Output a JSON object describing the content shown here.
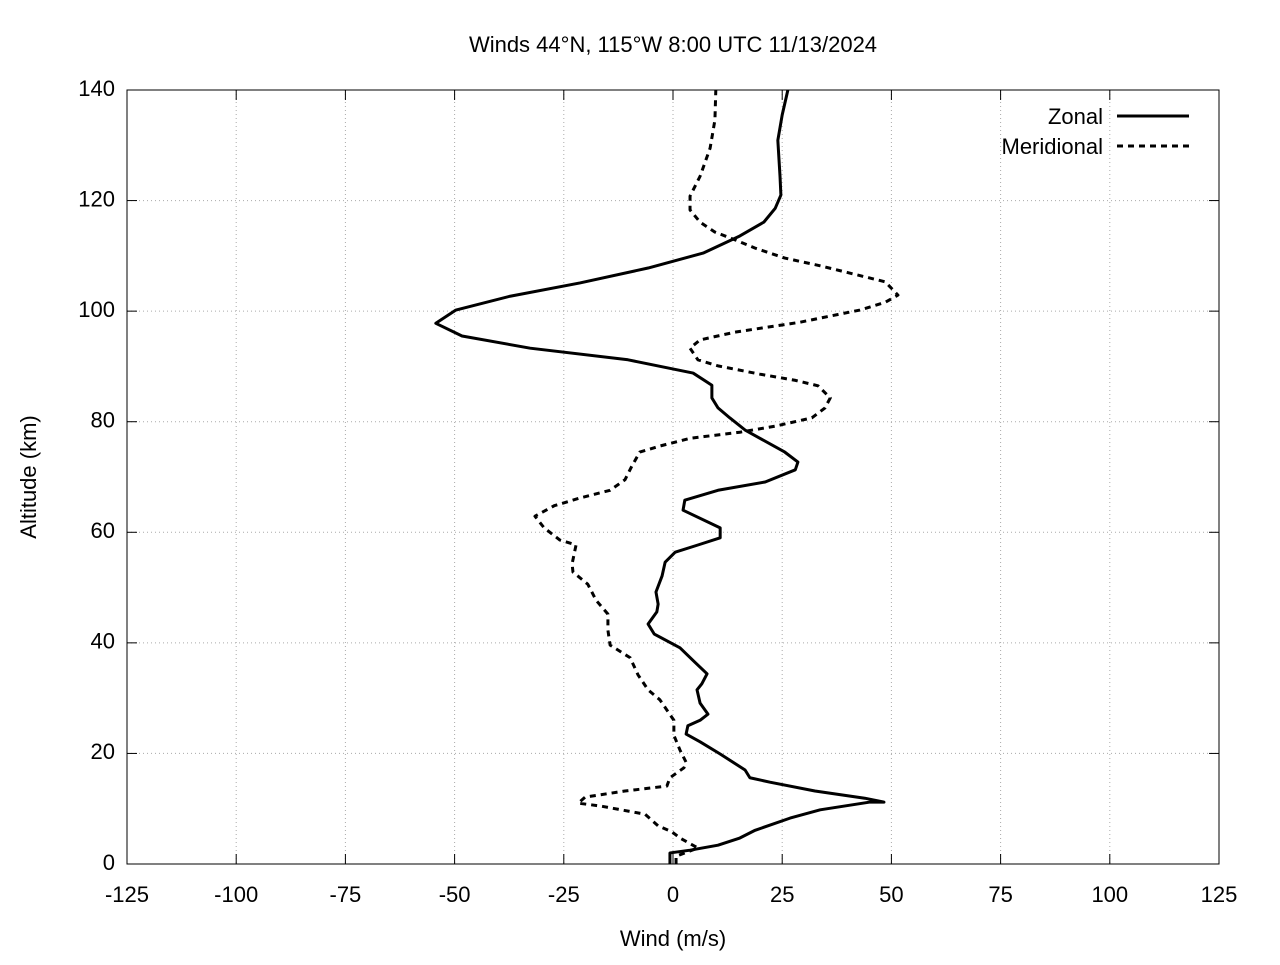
{
  "chart_data": {
    "type": "line",
    "title": "Winds 44°N, 115°W 8:00 UTC 11/13/2024",
    "x_label": "Wind (m/s)",
    "y_label": "Altitude (km)",
    "xlim": [
      -125,
      125
    ],
    "xticks": [
      -125,
      -100,
      -75,
      -50,
      -25,
      0,
      25,
      50,
      75,
      100,
      125
    ],
    "ylim": [
      0,
      140
    ],
    "yticks": [
      0,
      20,
      40,
      60,
      80,
      100,
      120,
      140
    ],
    "grid": true,
    "legend": "top-right",
    "series": [
      {
        "name": "Zonal",
        "color": "#000000",
        "dash": "solid",
        "x": [
          -0.7,
          -0.7,
          3.9,
          10.3,
          15.3,
          18.8,
          26.8,
          33.7,
          45.1,
          48.3,
          43.9,
          32.5,
          22.2,
          17.6,
          16.5,
          10.8,
          6.2,
          3,
          3.4,
          6.2,
          8,
          6.2,
          5.5,
          6.6,
          7.8,
          5,
          1.6,
          -4.3,
          -5.7,
          -3.7,
          -3.4,
          -3.9,
          -2.5,
          -1.8,
          0.5,
          5.7,
          10.8,
          10.8,
          2.3,
          2.7,
          10.3,
          21.1,
          28,
          28.6,
          25.6,
          19.9,
          16.5,
          13,
          10.3,
          8.9,
          8.9,
          4.6,
          -10.3,
          -32.7,
          -48.3,
          -54.3,
          -49.7,
          -37.3,
          -21.3,
          -5.7,
          6.9,
          15.3,
          20.8,
          23.4,
          24.7,
          24.5,
          24,
          25,
          26.3
        ],
        "y": [
          0,
          2,
          2.5,
          3.4,
          4.7,
          6.1,
          8.3,
          9.8,
          11.2,
          11.2,
          11.9,
          13.2,
          14.8,
          15.6,
          17,
          19.9,
          22.1,
          23.5,
          25,
          26,
          27.1,
          29.1,
          31.5,
          32.6,
          34.4,
          36.5,
          39.1,
          41.6,
          43.4,
          45.6,
          47,
          49.2,
          52.1,
          54.6,
          56.4,
          57.7,
          59,
          60.8,
          64,
          65.8,
          67.6,
          69.1,
          71.3,
          72.7,
          74.5,
          77,
          78.5,
          80.7,
          82.5,
          84.3,
          86.6,
          88.8,
          91.2,
          93.3,
          95.5,
          97.8,
          100.2,
          102.7,
          105.1,
          107.8,
          110.5,
          113.6,
          116.1,
          118.6,
          121,
          124.4,
          130.9,
          135.5,
          140
        ]
      },
      {
        "name": "Meridional",
        "color": "#000000",
        "dash": "dashed",
        "x": [
          0.7,
          0.7,
          5.7,
          1.6,
          -0.2,
          -3.4,
          -6.4,
          -16.7,
          -21.7,
          -20.1,
          -11,
          -1.4,
          -0.7,
          2.5,
          3,
          1.6,
          0.2,
          0.2,
          -3,
          -5.7,
          -8,
          -9.8,
          -14.4,
          -14.9,
          -14.9,
          -17.6,
          -19.5,
          -22.9,
          -23.1,
          -22.2,
          -25.9,
          -29.5,
          -31.6,
          -27.2,
          -21.3,
          -14.4,
          -11,
          -9.4,
          -7.6,
          -3,
          3.9,
          15.3,
          23.4,
          31.8,
          34.8,
          36,
          33.2,
          27.9,
          19.9,
          10.3,
          5.7,
          3.9,
          6.2,
          14.2,
          29.1,
          42.8,
          48.6,
          51.5,
          48.6,
          33.7,
          25.6,
          18.8,
          14.2,
          9.6,
          6.2,
          3.9,
          3.9,
          6.2,
          8.5,
          9.6,
          9.8
        ],
        "y": [
          0,
          1.4,
          2.9,
          4.7,
          5.8,
          6.9,
          9,
          10.5,
          11,
          12.1,
          13.2,
          14.1,
          15.6,
          17.4,
          18.4,
          20.6,
          23.3,
          26,
          29.7,
          31.5,
          34.2,
          37.3,
          39.6,
          42.3,
          45.2,
          47.7,
          50.6,
          52.8,
          54.3,
          57.7,
          58.6,
          60.8,
          62.9,
          64.8,
          66.2,
          67.6,
          69.5,
          72,
          74.5,
          75.6,
          77,
          78.1,
          79.2,
          80.7,
          82.5,
          84.3,
          86.5,
          87.5,
          88.6,
          90.1,
          91.2,
          93.3,
          94.8,
          96.2,
          98,
          100.2,
          101.6,
          102.9,
          105.3,
          108.2,
          109.6,
          111.4,
          112.9,
          114.3,
          116.1,
          118.3,
          120.8,
          124.4,
          129.5,
          134.6,
          140
        ]
      }
    ]
  }
}
